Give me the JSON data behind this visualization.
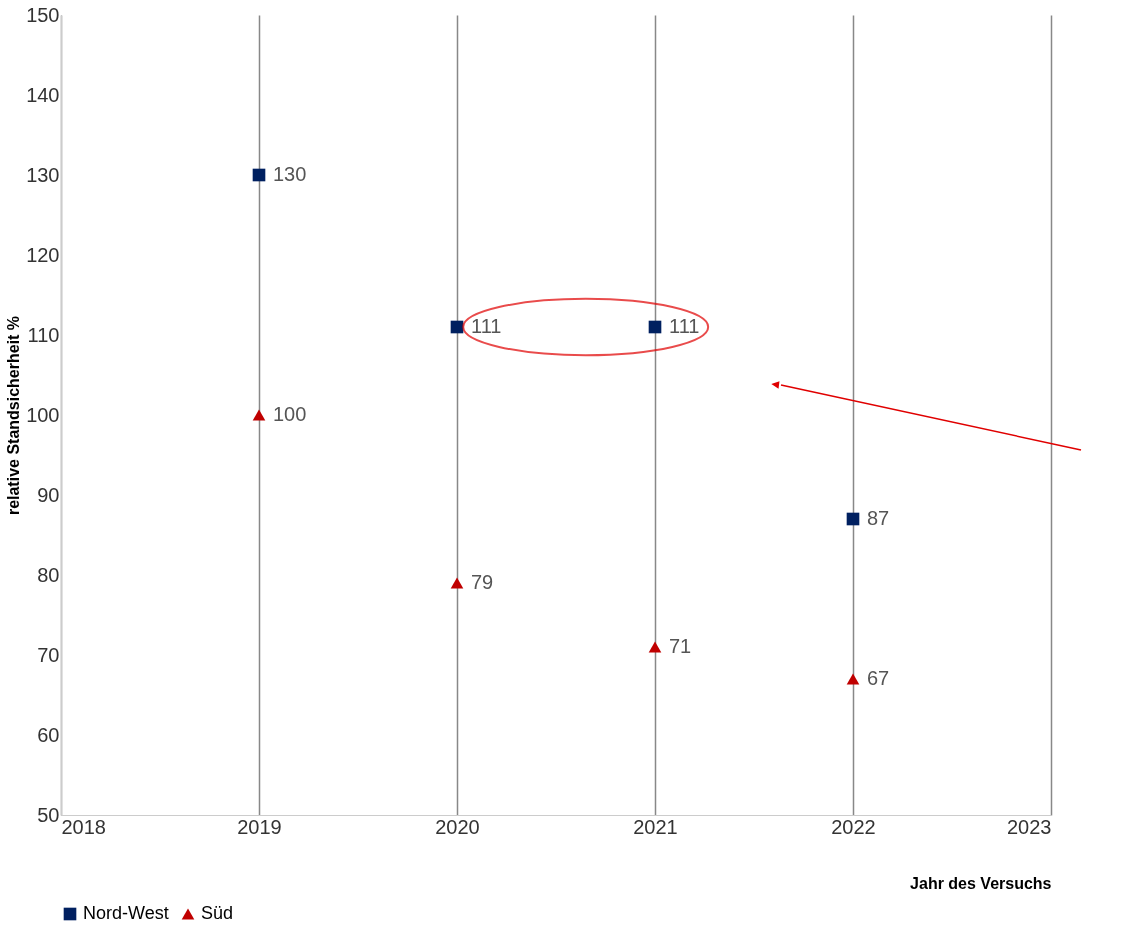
{
  "chart_data": {
    "type": "scatter",
    "xlabel": "Jahr des Versuchs",
    "ylabel": "relative Standsicherheit %",
    "x": [
      2019,
      2020,
      2021,
      2022
    ],
    "series": [
      {
        "name": "Nord-West",
        "color": "#002060",
        "marker": "square",
        "values": [
          130,
          111,
          111,
          87
        ]
      },
      {
        "name": "Süd",
        "color": "#c00000",
        "marker": "triangle",
        "values": [
          100,
          79,
          71,
          67
        ]
      }
    ],
    "xlim": [
      2018,
      2023
    ],
    "xticks": [
      2018,
      2019,
      2020,
      2021,
      2022,
      2023
    ],
    "ylim": [
      50,
      150
    ],
    "yticks": [
      50,
      60,
      70,
      80,
      90,
      100,
      110,
      120,
      130,
      140,
      150
    ],
    "grid": "x",
    "legend": "bottom",
    "data_labels": true
  }
}
